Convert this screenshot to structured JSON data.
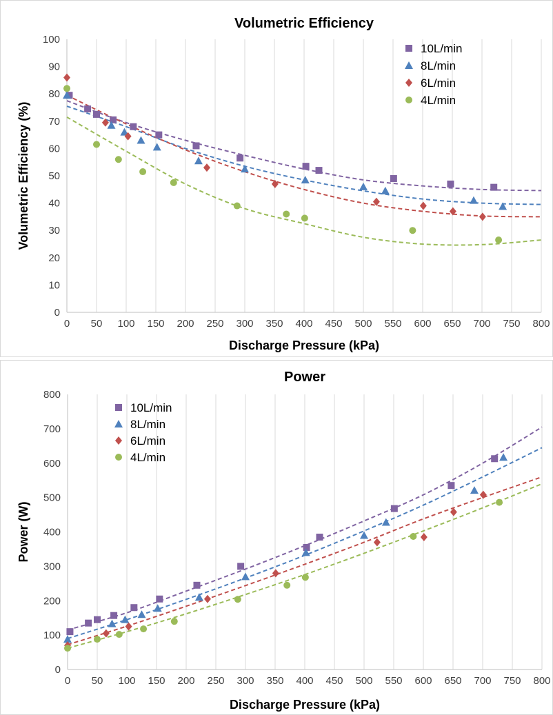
{
  "chart_data": [
    {
      "type": "scatter",
      "title": "Volumetric  Efficiency",
      "xlabel": "Discharge Pressure (kPa)",
      "ylabel": "Volumetric Efficiency (%)",
      "xlim": [
        0,
        800
      ],
      "ylim": [
        0,
        100
      ],
      "xticks": [
        "0",
        "50",
        "100",
        "150",
        "200",
        "250",
        "300",
        "350",
        "400",
        "450",
        "500",
        "550",
        "600",
        "650",
        "700",
        "750",
        "800"
      ],
      "yticks": [
        "0",
        "10",
        "20",
        "30",
        "40",
        "50",
        "60",
        "70",
        "80",
        "90",
        "100"
      ],
      "grid": "vertical",
      "legend": "top-right",
      "trendlines": "dashed",
      "series": [
        {
          "name": "10L/min",
          "marker": "square",
          "color": "#8064a2",
          "points": [
            [
              4,
              79.5
            ],
            [
              35,
              74.5
            ],
            [
              50,
              72.5
            ],
            [
              78,
              70.5
            ],
            [
              112,
              68
            ],
            [
              155,
              65
            ],
            [
              218,
              61
            ],
            [
              292,
              56.5
            ],
            [
              403,
              53.5
            ],
            [
              425,
              52
            ],
            [
              551,
              49
            ],
            [
              647,
              47
            ],
            [
              720,
              45.8
            ]
          ],
          "trend": [
            [
              0,
              77.5
            ],
            [
              100,
              69.5
            ],
            [
              200,
              63
            ],
            [
              300,
              57.5
            ],
            [
              400,
              52.5
            ],
            [
              500,
              48.5
            ],
            [
              600,
              46.3
            ],
            [
              700,
              45
            ],
            [
              800,
              44.6
            ]
          ]
        },
        {
          "name": "8L/min",
          "marker": "triangle",
          "color": "#4f81bd",
          "points": [
            [
              0,
              79.5
            ],
            [
              75,
              68.5
            ],
            [
              97,
              66
            ],
            [
              125,
              63
            ],
            [
              152,
              60.5
            ],
            [
              222,
              55.5
            ],
            [
              300,
              52.5
            ],
            [
              402,
              48.5
            ],
            [
              500,
              46
            ],
            [
              537,
              44.5
            ],
            [
              686,
              41
            ],
            [
              735,
              38.8
            ]
          ],
          "trend": [
            [
              0,
              75.5
            ],
            [
              100,
              68
            ],
            [
              200,
              60
            ],
            [
              300,
              53.5
            ],
            [
              400,
              48.5
            ],
            [
              500,
              44.5
            ],
            [
              600,
              41.5
            ],
            [
              700,
              40
            ],
            [
              800,
              39.5
            ]
          ]
        },
        {
          "name": "6L/min",
          "marker": "diamond",
          "color": "#c0504d",
          "points": [
            [
              0,
              86
            ],
            [
              65,
              69.5
            ],
            [
              103,
              64.5
            ],
            [
              236,
              53
            ],
            [
              351,
              47
            ],
            [
              522,
              40.5
            ],
            [
              601,
              39
            ],
            [
              651,
              37
            ],
            [
              701,
              35
            ]
          ],
          "trend": [
            [
              0,
              79.5
            ],
            [
              100,
              69
            ],
            [
              200,
              59.5
            ],
            [
              300,
              51.5
            ],
            [
              400,
              45
            ],
            [
              500,
              40
            ],
            [
              600,
              37
            ],
            [
              700,
              35.3
            ],
            [
              800,
              35
            ]
          ]
        },
        {
          "name": "4L/min",
          "marker": "circle",
          "color": "#9bbb59",
          "points": [
            [
              0,
              82
            ],
            [
              50,
              61.5
            ],
            [
              87,
              56
            ],
            [
              128,
              51.5
            ],
            [
              180,
              47.5
            ],
            [
              287,
              39
            ],
            [
              370,
              36
            ],
            [
              401,
              34.5
            ],
            [
              583,
              30
            ],
            [
              728,
              26.5
            ]
          ],
          "trend": [
            [
              0,
              71.5
            ],
            [
              100,
              59
            ],
            [
              200,
              47
            ],
            [
              300,
              38
            ],
            [
              400,
              32.5
            ],
            [
              500,
              27.5
            ],
            [
              600,
              25
            ],
            [
              700,
              24.8
            ],
            [
              800,
              26.5
            ]
          ]
        }
      ]
    },
    {
      "type": "scatter",
      "title": "Power",
      "xlabel": "Discharge Pressure (kPa)",
      "ylabel": "Power (W)",
      "xlim": [
        0,
        800
      ],
      "ylim": [
        0,
        800
      ],
      "xticks": [
        "0",
        "50",
        "100",
        "150",
        "200",
        "250",
        "300",
        "350",
        "400",
        "450",
        "500",
        "550",
        "600",
        "650",
        "700",
        "750",
        "800"
      ],
      "yticks": [
        "0",
        "100",
        "200",
        "300",
        "400",
        "500",
        "600",
        "700",
        "800"
      ],
      "grid": "vertical",
      "legend": "top-left",
      "trendlines": "dashed",
      "series": [
        {
          "name": "10L/min",
          "marker": "square",
          "color": "#8064a2",
          "points": [
            [
              4,
              110
            ],
            [
              35,
              135
            ],
            [
              50,
              145
            ],
            [
              78,
              157
            ],
            [
              112,
              180
            ],
            [
              155,
              205
            ],
            [
              218,
              245
            ],
            [
              292,
              300
            ],
            [
              403,
              355
            ],
            [
              425,
              385
            ],
            [
              551,
              468
            ],
            [
              647,
              535
            ],
            [
              720,
              613
            ]
          ],
          "trend": [
            [
              0,
              115
            ],
            [
              100,
              165
            ],
            [
              200,
              228
            ],
            [
              300,
              292
            ],
            [
              400,
              360
            ],
            [
              500,
              432
            ],
            [
              600,
              508
            ],
            [
              700,
              600
            ],
            [
              800,
              705
            ]
          ]
        },
        {
          "name": "8L/min",
          "marker": "triangle",
          "color": "#4f81bd",
          "points": [
            [
              0,
              88
            ],
            [
              75,
              133
            ],
            [
              97,
              145
            ],
            [
              125,
              160
            ],
            [
              152,
              178
            ],
            [
              222,
              210
            ],
            [
              300,
              270
            ],
            [
              402,
              340
            ],
            [
              500,
              390
            ],
            [
              537,
              428
            ],
            [
              686,
              521
            ],
            [
              735,
              617
            ]
          ],
          "trend": [
            [
              0,
              90
            ],
            [
              100,
              145
            ],
            [
              200,
              204
            ],
            [
              300,
              266
            ],
            [
              400,
              332
            ],
            [
              500,
              403
            ],
            [
              600,
              478
            ],
            [
              700,
              560
            ],
            [
              800,
              645
            ]
          ]
        },
        {
          "name": "6L/min",
          "marker": "diamond",
          "color": "#c0504d",
          "points": [
            [
              0,
              70
            ],
            [
              65,
              105
            ],
            [
              103,
              125
            ],
            [
              236,
              205
            ],
            [
              351,
              280
            ],
            [
              522,
              370
            ],
            [
              601,
              385
            ],
            [
              651,
              458
            ],
            [
              701,
              508
            ]
          ],
          "trend": [
            [
              0,
              72
            ],
            [
              100,
              126
            ],
            [
              200,
              184
            ],
            [
              300,
              244
            ],
            [
              400,
              306
            ],
            [
              500,
              370
            ],
            [
              600,
              438
            ],
            [
              700,
              500
            ],
            [
              800,
              560
            ]
          ]
        },
        {
          "name": "4L/min",
          "marker": "circle",
          "color": "#9bbb59",
          "points": [
            [
              0,
              62
            ],
            [
              50,
              88
            ],
            [
              87,
              102
            ],
            [
              128,
              118
            ],
            [
              180,
              140
            ],
            [
              287,
              204
            ],
            [
              370,
              245
            ],
            [
              401,
              268
            ],
            [
              583,
              387
            ],
            [
              728,
              486
            ]
          ],
          "trend": [
            [
              0,
              62
            ],
            [
              100,
              110
            ],
            [
              200,
              162
            ],
            [
              300,
              218
            ],
            [
              400,
              276
            ],
            [
              500,
              338
            ],
            [
              600,
              403
            ],
            [
              700,
              470
            ],
            [
              800,
              540
            ]
          ]
        }
      ]
    }
  ]
}
